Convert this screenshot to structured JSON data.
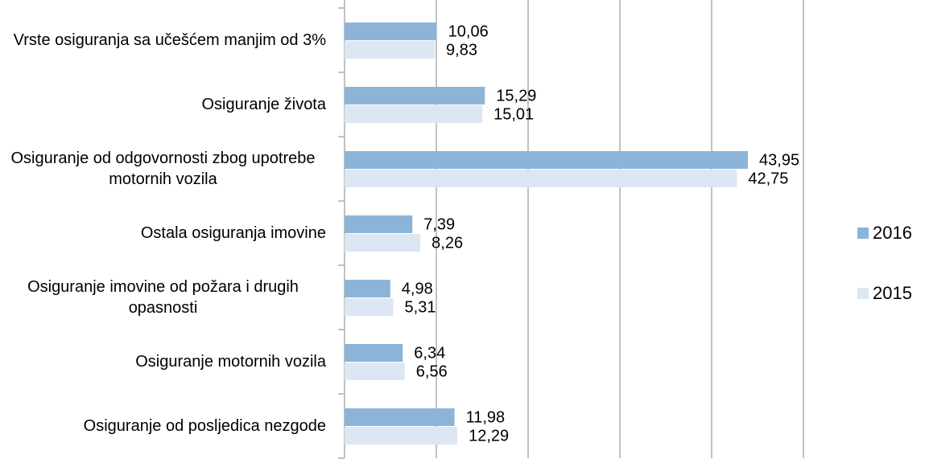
{
  "chart_data": {
    "type": "hbar",
    "categories": [
      "Vrste osiguranja sa učešćem manjim od 3%",
      "Osiguranje života",
      "Osiguranje od odgovornosti zbog upotrebe motornih vozila",
      "Ostala osiguranja imovine",
      "Osiguranje imovine od požara i drugih opasnosti",
      "Osiguranje motornih vozila",
      "Osiguranje od posljedica nezgode"
    ],
    "series": [
      {
        "name": "2016",
        "color": "#8cb4d8",
        "values": [
          10.06,
          15.29,
          43.95,
          7.39,
          4.98,
          6.34,
          11.98
        ],
        "value_labels": [
          "10,06",
          "15,29",
          "43,95",
          "7,39",
          "4,98",
          "6,34",
          "11,98"
        ]
      },
      {
        "name": "2015",
        "color": "#dde7f3",
        "values": [
          9.83,
          15.01,
          42.75,
          8.26,
          5.31,
          6.56,
          12.29
        ],
        "value_labels": [
          "9,83",
          "15,01",
          "42,75",
          "8,26",
          "5,31",
          "6,56",
          "12,29"
        ]
      }
    ],
    "xlim": [
      0,
      50
    ],
    "xticks": [
      0,
      10,
      20,
      30,
      40,
      50
    ],
    "grid": true,
    "legend": "right"
  }
}
